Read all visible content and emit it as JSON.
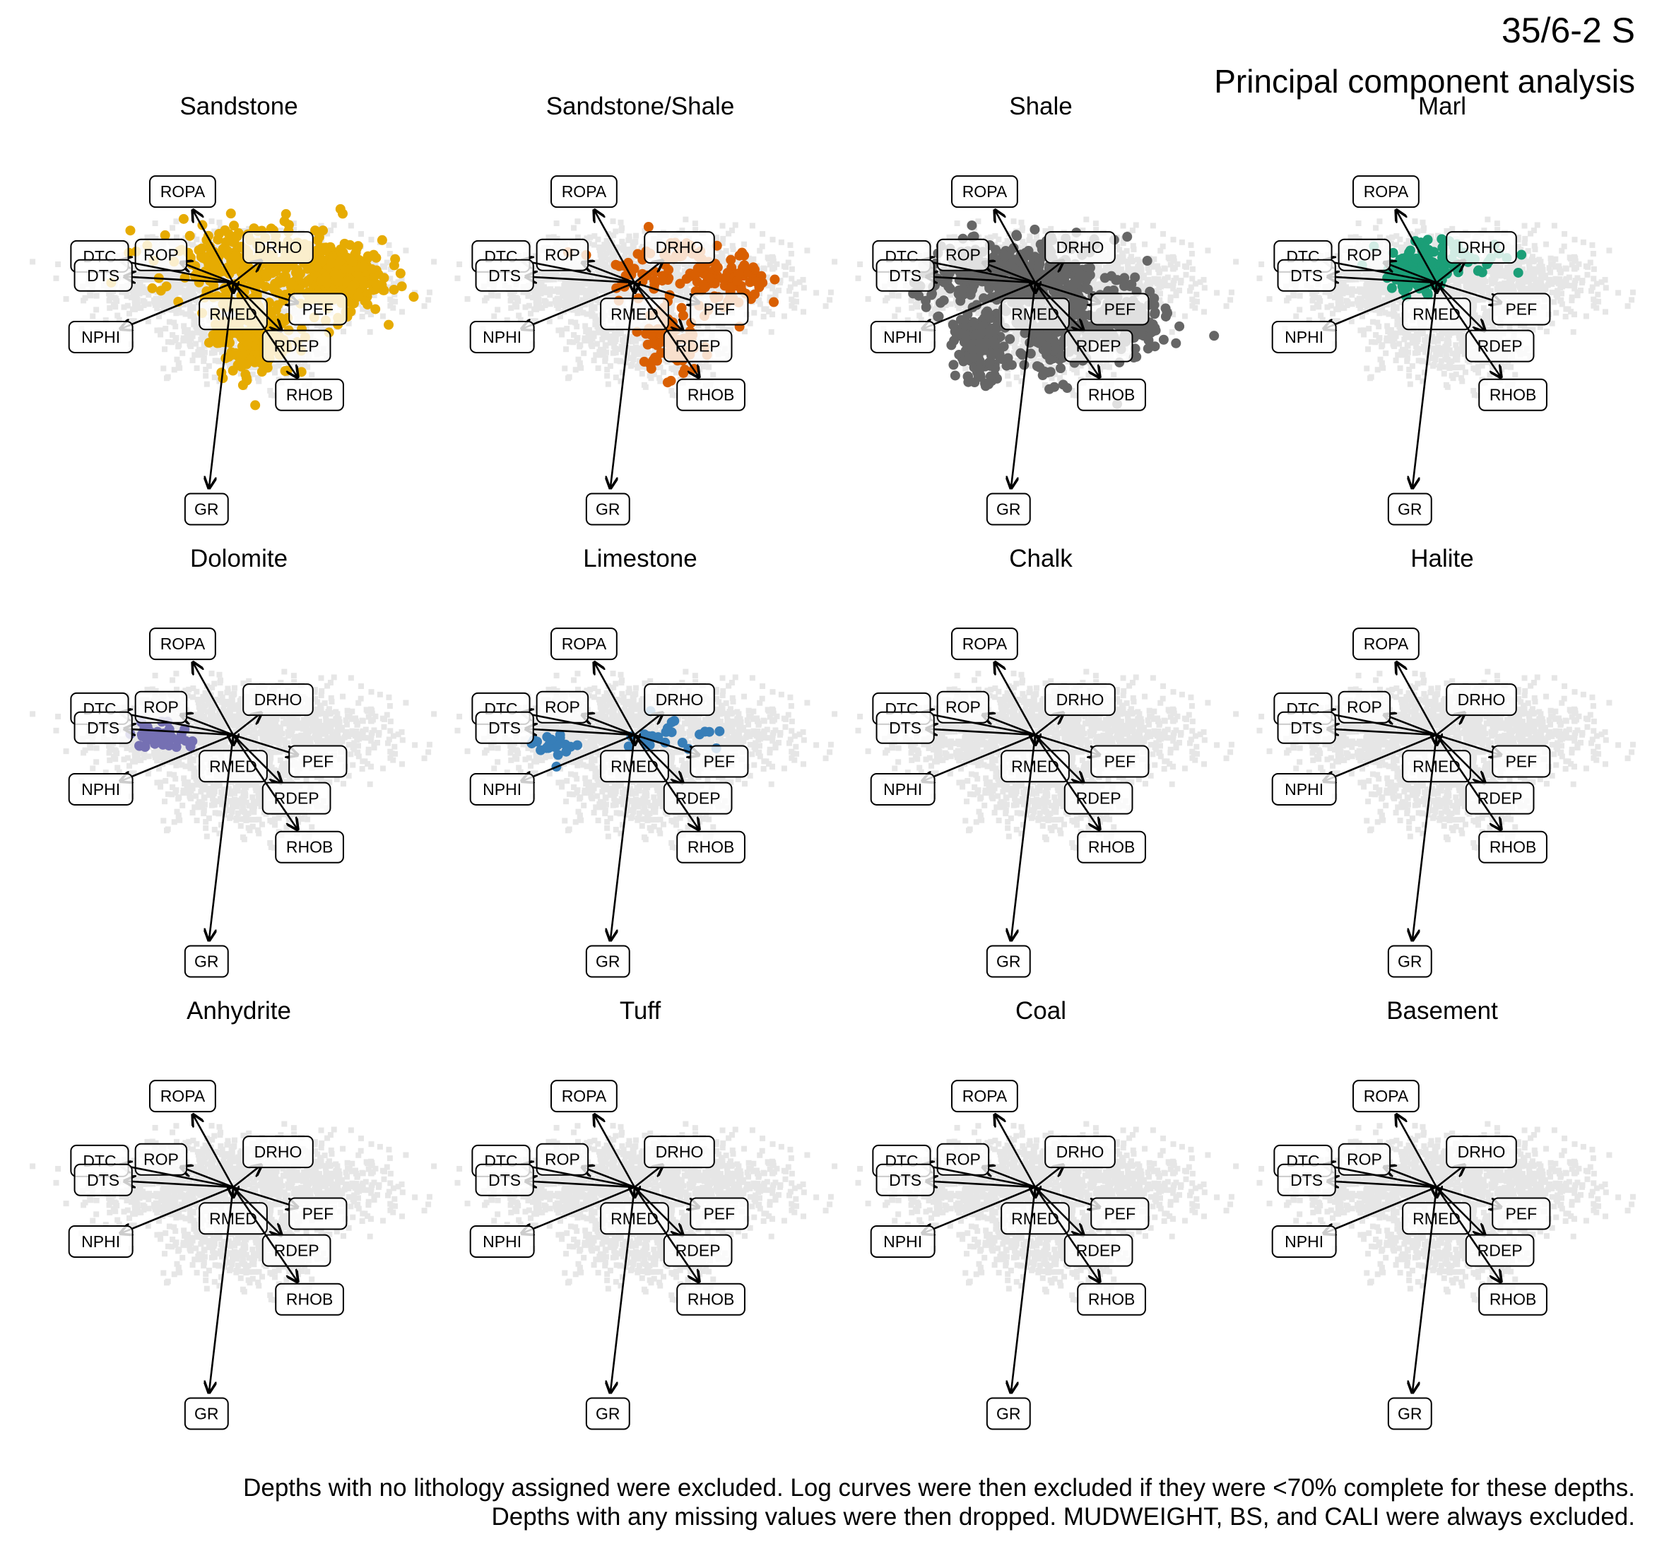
{
  "title": "35/6-2 S",
  "subtitle": "Principal component analysis",
  "caption_lines": [
    "Depths with no lithology assigned were excluded. Log curves were then excluded if they were <70% complete for these depths.",
    "Depths with any missing values were then dropped. MUDWEIGHT, BS, and CALI were always excluded."
  ],
  "colors": {
    "background_points": "#e6e6e6",
    "Sandstone": "#e6ab02",
    "Sandstone/Shale": "#d95f02",
    "Shale": "#666666",
    "Marl": "#1b9e77",
    "Dolomite": "#7570b3",
    "Limestone": "#377eb8"
  },
  "chart_data": {
    "type": "scatter",
    "subtype": "PCA biplot facets",
    "xlabel": "",
    "ylabel": "",
    "xlim": [
      -3.5,
      4.5
    ],
    "ylim": [
      -5.5,
      2.0
    ],
    "grid": false,
    "loadings": [
      {
        "name": "ROPA",
        "x": -1.0,
        "y": 1.8
      },
      {
        "name": "ROP",
        "x": -1.3,
        "y": 0.5
      },
      {
        "name": "DTC",
        "x": -2.8,
        "y": 0.55
      },
      {
        "name": "DTS",
        "x": -2.7,
        "y": 0.15
      },
      {
        "name": "NPHI",
        "x": -2.8,
        "y": -1.15
      },
      {
        "name": "DRHO",
        "x": 0.7,
        "y": 0.55
      },
      {
        "name": "RMED",
        "x": 0.0,
        "y": -0.25
      },
      {
        "name": "PEF",
        "x": 1.6,
        "y": -0.5
      },
      {
        "name": "RDEP",
        "x": 1.2,
        "y": -1.2
      },
      {
        "name": "RHOB",
        "x": 1.6,
        "y": -2.35
      },
      {
        "name": "GR",
        "x": -0.6,
        "y": -5.1
      }
    ],
    "facets": [
      {
        "name": "Sandstone",
        "n_points": 700
      },
      {
        "name": "Sandstone/Shale",
        "n_points": 220
      },
      {
        "name": "Shale",
        "n_points": 900
      },
      {
        "name": "Marl",
        "n_points": 160
      },
      {
        "name": "Dolomite",
        "n_points": 40
      },
      {
        "name": "Limestone",
        "n_points": 45
      },
      {
        "name": "Chalk",
        "n_points": 0
      },
      {
        "name": "Halite",
        "n_points": 0
      },
      {
        "name": "Anhydrite",
        "n_points": 0
      },
      {
        "name": "Tuff",
        "n_points": 0
      },
      {
        "name": "Coal",
        "n_points": 0
      },
      {
        "name": "Basement",
        "n_points": 0
      }
    ]
  }
}
